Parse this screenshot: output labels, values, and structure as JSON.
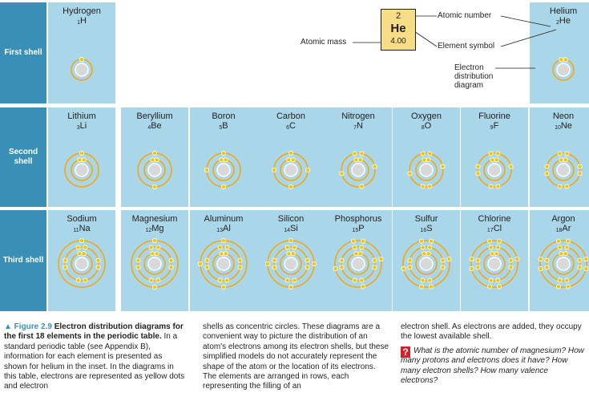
{
  "shells": [
    {
      "label": "First shell",
      "row": 0
    },
    {
      "label": "Second shell",
      "row": 1
    },
    {
      "label": "Third shell",
      "row": 2
    }
  ],
  "elements": [
    {
      "name": "Hydrogen",
      "number": "1",
      "symbol": "H",
      "electrons": [
        1
      ]
    },
    {
      "name": "Helium",
      "number": "2",
      "symbol": "He",
      "electrons": [
        2
      ]
    },
    {
      "name": "Lithium",
      "number": "3",
      "symbol": "Li",
      "electrons": [
        2,
        1
      ]
    },
    {
      "name": "Beryllium",
      "number": "4",
      "symbol": "Be",
      "electrons": [
        2,
        2
      ]
    },
    {
      "name": "Boron",
      "number": "5",
      "symbol": "B",
      "electrons": [
        2,
        3
      ]
    },
    {
      "name": "Carbon",
      "number": "6",
      "symbol": "C",
      "electrons": [
        2,
        4
      ]
    },
    {
      "name": "Nitrogen",
      "number": "7",
      "symbol": "N",
      "electrons": [
        2,
        5
      ]
    },
    {
      "name": "Oxygen",
      "number": "8",
      "symbol": "O",
      "electrons": [
        2,
        6
      ]
    },
    {
      "name": "Fluorine",
      "number": "9",
      "symbol": "F",
      "electrons": [
        2,
        7
      ]
    },
    {
      "name": "Neon",
      "number": "10",
      "symbol": "Ne",
      "electrons": [
        2,
        8
      ]
    },
    {
      "name": "Sodium",
      "number": "11",
      "symbol": "Na",
      "electrons": [
        2,
        8,
        1
      ]
    },
    {
      "name": "Magnesium",
      "number": "12",
      "symbol": "Mg",
      "electrons": [
        2,
        8,
        2
      ]
    },
    {
      "name": "Aluminum",
      "number": "13",
      "symbol": "Al",
      "electrons": [
        2,
        8,
        3
      ]
    },
    {
      "name": "Silicon",
      "number": "14",
      "symbol": "Si",
      "electrons": [
        2,
        8,
        4
      ]
    },
    {
      "name": "Phosphorus",
      "number": "15",
      "symbol": "P",
      "electrons": [
        2,
        8,
        5
      ]
    },
    {
      "name": "Sulfur",
      "number": "16",
      "symbol": "S",
      "electrons": [
        2,
        8,
        6
      ]
    },
    {
      "name": "Chlorine",
      "number": "17",
      "symbol": "Cl",
      "electrons": [
        2,
        8,
        7
      ]
    },
    {
      "name": "Argon",
      "number": "18",
      "symbol": "Ar",
      "electrons": [
        2,
        8,
        8
      ]
    }
  ],
  "inset": {
    "atomic_number": "2",
    "symbol": "He",
    "atomic_mass": "4.00",
    "label_atomic_number": "Atomic number",
    "label_element_symbol": "Element symbol",
    "label_atomic_mass": "Atomic mass",
    "label_diagram": "Electron distribution diagram"
  },
  "caption": {
    "figure_number": "▲ Figure 2.9",
    "title": "Electron distribution diagrams for the first 18 elements in the periodic table.",
    "col1_body": "In a standard periodic table (see Appendix B), information for each element is presented as shown for helium in the inset. In the diagrams in this table, electrons are represented as yellow dots and electron",
    "col2_body": "shells as concentric circles. These diagrams are a convenient way to picture the distribution of an atom's electrons among its electron shells, but these simplified models do not accurately represent the shape of the atom or the location of its electrons. The elements are arranged in rows, each representing the filling of an",
    "col3_body": "electron shell. As electrons are added, they occupy the lowest available shell.",
    "question_mark": "?",
    "question": "What is the atomic number of magnesium? How many protons and electrons does it have? How many electron shells? How many valence electrons?"
  },
  "colors": {
    "shell_label_bg": "#3a8fb7",
    "cell_bg": "#a9d6e8",
    "electron": "#f5c400",
    "shell_ring": "#f3a712",
    "nucleus": "#d8d8d8",
    "inset_bg": "#f7dd88",
    "question_box": "#d2232a"
  }
}
